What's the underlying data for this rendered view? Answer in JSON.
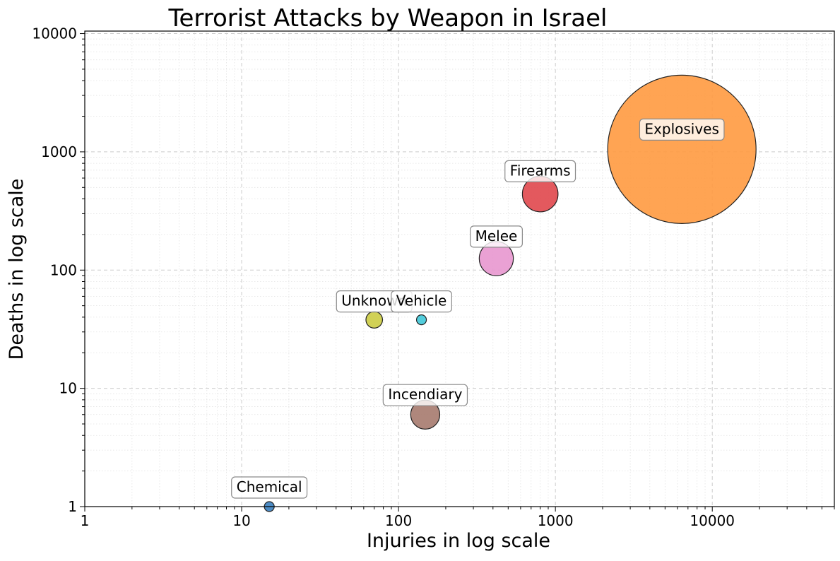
{
  "chart_data": {
    "type": "scatter",
    "subtype": "bubble",
    "title": "Terrorist Attacks by Weapon in Israel",
    "xlabel": "Injuries in log scale",
    "ylabel": "Deaths in log scale",
    "xscale": "log",
    "yscale": "log",
    "xlim": [
      1,
      60000
    ],
    "ylim": [
      1,
      10500
    ],
    "xticks": [
      "1",
      "10",
      "100",
      "1000",
      "10000"
    ],
    "yticks": [
      "1",
      "10",
      "100",
      "1000",
      "10000"
    ],
    "grid": true,
    "points": [
      {
        "label": "Explosives",
        "x": 6400,
        "y": 1050,
        "attacks": 1040,
        "color": "#ff9a40"
      },
      {
        "label": "Firearms",
        "x": 800,
        "y": 440,
        "attacks": 60,
        "color": "#e0474c"
      },
      {
        "label": "Melee",
        "x": 420,
        "y": 125,
        "attacks": 55,
        "color": "#e897cf"
      },
      {
        "label": "Unknown",
        "x": 70,
        "y": 38,
        "attacks": 13,
        "color": "#cccc44"
      },
      {
        "label": "Vehicle",
        "x": 140,
        "y": 38,
        "attacks": 3,
        "color": "#40c8d8"
      },
      {
        "label": "Incendiary",
        "x": 148,
        "y": 6,
        "attacks": 40,
        "color": "#a67a6e"
      },
      {
        "label": "Chemical",
        "x": 15,
        "y": 1,
        "attacks": 2,
        "color": "#3a7fbf"
      }
    ]
  }
}
